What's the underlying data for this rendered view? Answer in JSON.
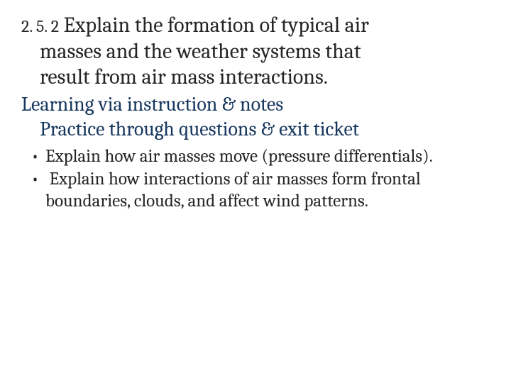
{
  "standard": {
    "number": "2. 5. 2",
    "text_line1": " Explain the formation of typical air",
    "text_line2": "masses and the weather systems that",
    "text_line3": "result from air mass interactions."
  },
  "learning": {
    "line1": "Learning via instruction & notes",
    "line2": "Practice through questions & exit ticket"
  },
  "bullets": [
    "Explain how air masses move (pressure differentials).",
    " Explain how interactions of air masses form frontal boundaries, clouds, and affect wind patterns."
  ],
  "colors": {
    "text": "#262626",
    "accent": "#17375e",
    "background": "#ffffff"
  },
  "typography": {
    "main_fontsize": 30,
    "number_fontsize": 24,
    "learning_fontsize": 28,
    "bullet_fontsize": 25,
    "font_family": "Cambria"
  }
}
